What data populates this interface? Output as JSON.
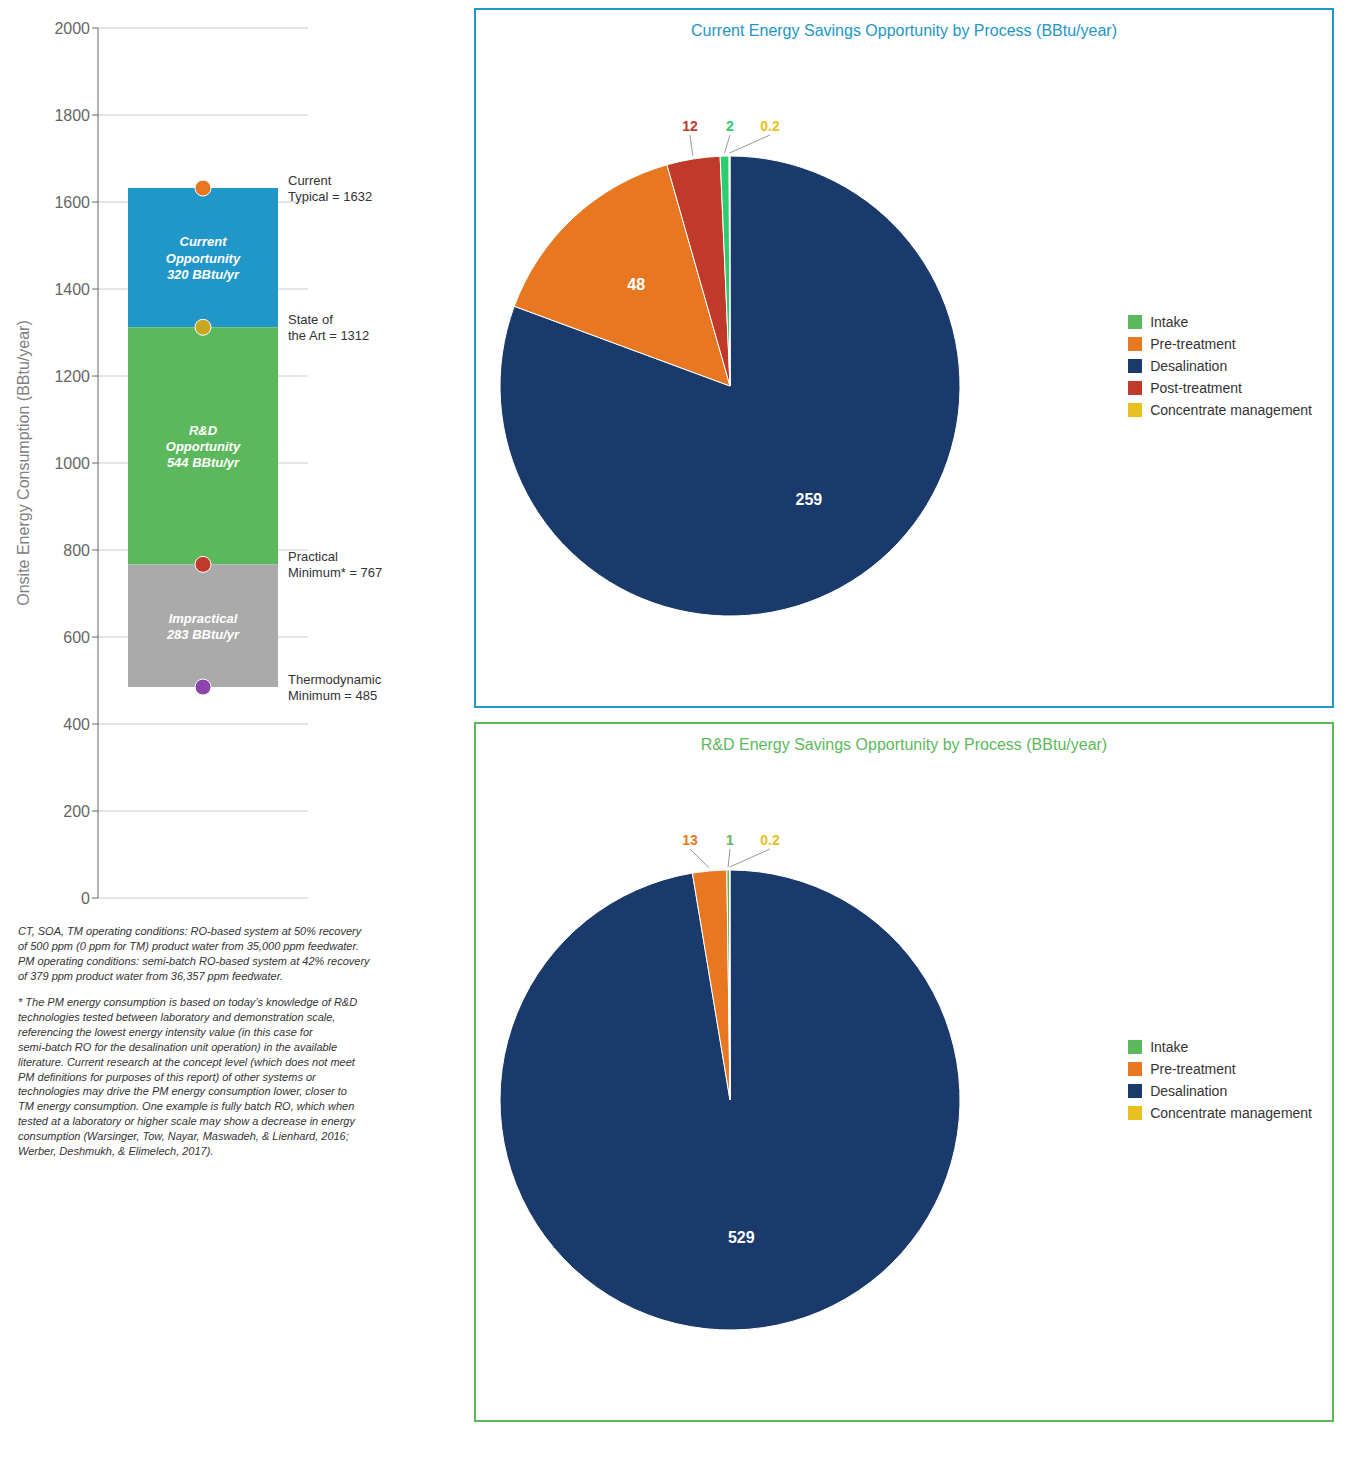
{
  "chart_data": [
    {
      "type": "bar",
      "ylabel": "Onsite Energy Consumption (BBtu/year)",
      "ylim": [
        0,
        2000
      ],
      "yticks": [
        0,
        200,
        400,
        600,
        800,
        1000,
        1200,
        1400,
        1600,
        1800,
        2000
      ],
      "grid": true,
      "series": [
        {
          "label": "Current\nOpportunity\n320 BBtu/yr",
          "color": "#2196C8",
          "values": [
            1312,
            1632
          ]
        },
        {
          "label": "R&D\nOpportunity\n544 BBtu/yr",
          "color": "#5CB85C",
          "values": [
            767,
            1312
          ]
        },
        {
          "label": "Impractical\n283 BBtu/yr",
          "color": "#AAAAAA",
          "values": [
            485,
            767
          ]
        }
      ],
      "points": [
        {
          "label": "Current\nTypical = 1632",
          "value": 1632,
          "color": "#E87722"
        },
        {
          "label": "State of\nthe Art = 1312",
          "value": 1312,
          "color": "#C8A820"
        },
        {
          "label": "Practical\nMinimum* = 767",
          "value": 767,
          "color": "#C0392B"
        },
        {
          "label": "Thermodynamic\nMinimum = 485",
          "value": 485,
          "color": "#8E44AD"
        }
      ],
      "footnotes": [
        "CT, SOA, TM operating conditions: RO-based system at 50% recovery\nof 500 ppm (0 ppm for TM) product water from 35,000 ppm feedwater.\nPM operating conditions: semi-batch RO-based system at 42% recovery\nof 379 ppm product water from 36,357 ppm feedwater.",
        "* The PM energy consumption is based on today’s knowledge of R&D\ntechnologies tested between laboratory and demonstration scale,\nreferencing the lowest energy intensity value (in this case for\nsemi-batch RO for the desalination unit operation) in the available\nliterature. Current research at the concept level (which does not meet\nPM definitions for purposes of this report) of other systems or\ntechnologies may drive the PM energy consumption lower, closer to\nTM energy consumption. One example is fully batch RO, which when\ntested at a laboratory or higher scale may show a decrease in energy\nconsumption (Warsinger, Tow, Nayar, Maswadeh, & Lienhard, 2016;\nWerber, Deshmukh, & Elimelech, 2017)."
      ]
    },
    {
      "type": "pie",
      "title": "Current Energy Savings Opportunity by Process (BBtu/year)",
      "color": "#2196C8",
      "values": [
        259,
        48,
        12,
        2,
        0.2
      ],
      "colors": [
        "#1A3A6B",
        "#E87722",
        "#C0392B",
        "#2ECC71",
        "#E8C020"
      ],
      "data_labels": true,
      "legend": "right",
      "legend_labels": [
        "Intake",
        "Pre-treatment",
        "Desalination",
        "Post-treatment",
        "Concentrate management"
      ],
      "legend_colors": [
        "#5CB85C",
        "#E87722",
        "#1A3A6B",
        "#C0392B",
        "#E8C020"
      ]
    },
    {
      "type": "pie",
      "title": "R&D Energy Savings Opportunity by Process (BBtu/year)",
      "color": "#5CB85C",
      "values": [
        529,
        13,
        1,
        0.2
      ],
      "colors": [
        "#1A3A6B",
        "#E87722",
        "#5CB85C",
        "#E8C020"
      ],
      "data_labels": true,
      "legend": "right",
      "legend_labels": [
        "Intake",
        "Pre-treatment",
        "Desalination",
        "Concentrate management"
      ],
      "legend_colors": [
        "#5CB85C",
        "#E87722",
        "#1A3A6B",
        "#E8C020"
      ]
    }
  ]
}
